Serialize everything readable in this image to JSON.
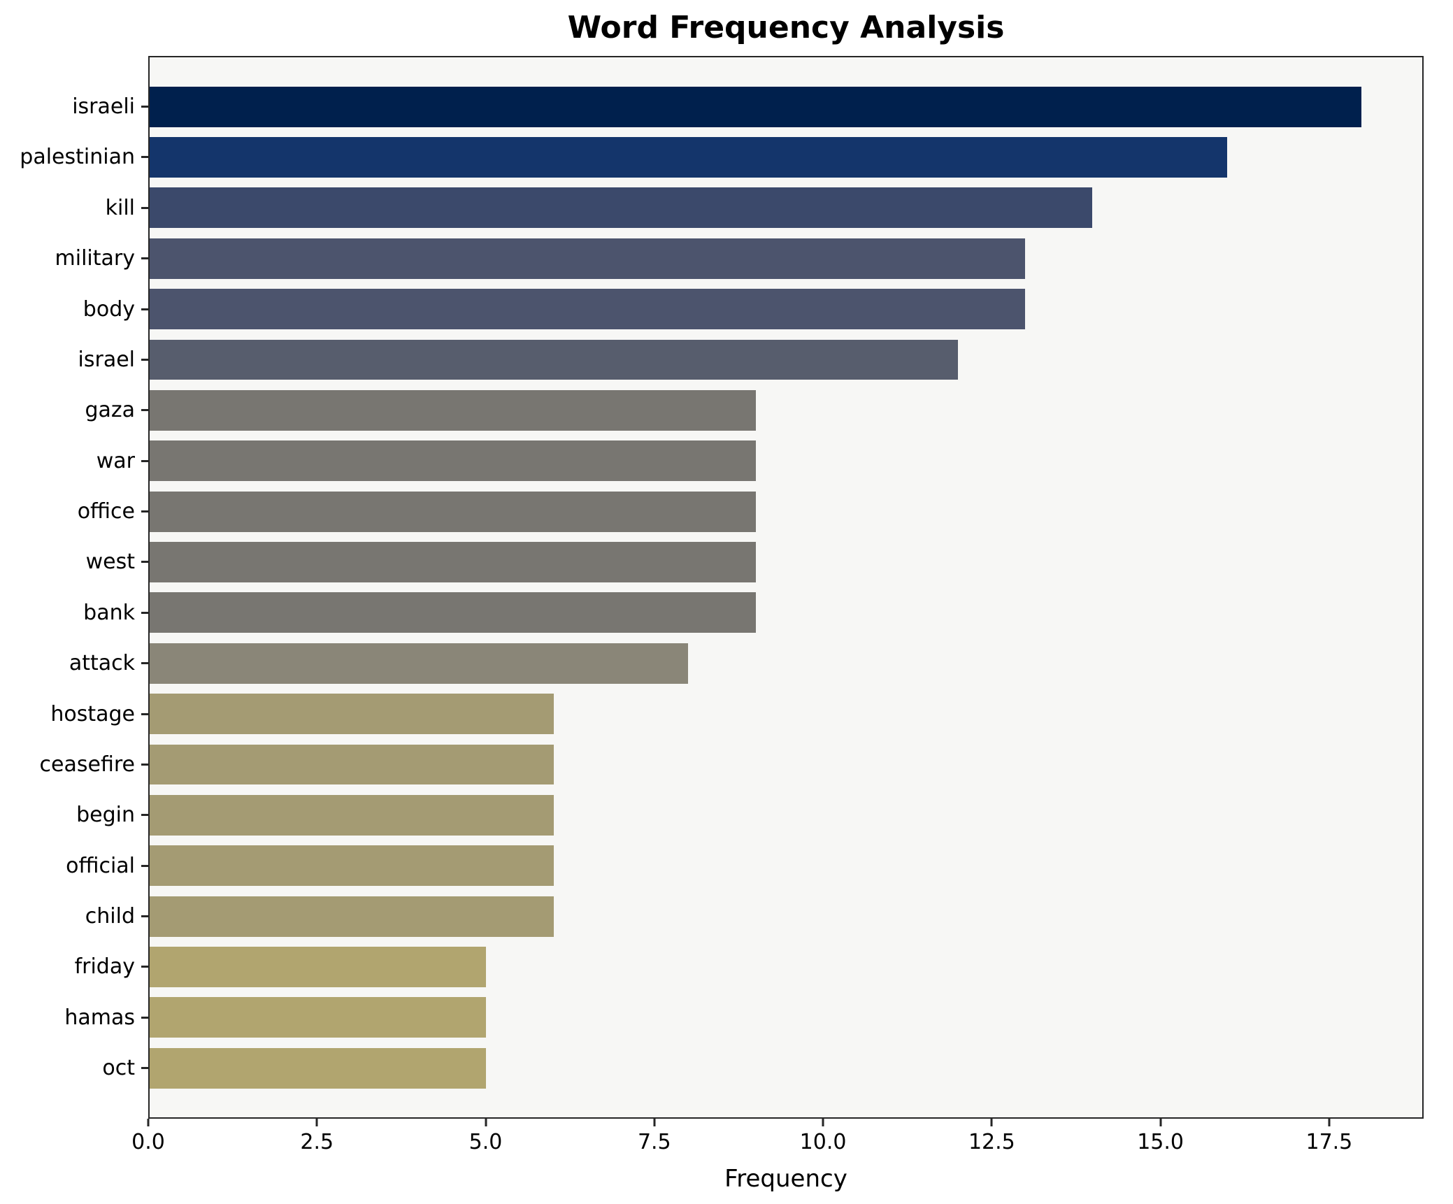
{
  "chart_data": {
    "type": "bar",
    "orientation": "horizontal",
    "title": "Word Frequency Analysis",
    "xlabel": "Frequency",
    "ylabel": "",
    "xlim": [
      0,
      18.9
    ],
    "xticks": [
      "0.0",
      "2.5",
      "5.0",
      "7.5",
      "10.0",
      "12.5",
      "15.0",
      "17.5"
    ],
    "xtick_values": [
      0,
      2.5,
      5,
      7.5,
      10,
      12.5,
      15,
      17.5
    ],
    "grid": false,
    "legend_position": "none",
    "plot_background": "#f7f7f5",
    "axis_color": "#262626",
    "categories": [
      "israeli",
      "palestinian",
      "kill",
      "military",
      "body",
      "israel",
      "gaza",
      "war",
      "office",
      "west",
      "bank",
      "attack",
      "hostage",
      "ceasefire",
      "begin",
      "official",
      "child",
      "friday",
      "hamas",
      "oct"
    ],
    "values": [
      18,
      16,
      14,
      13,
      13,
      12,
      9,
      9,
      9,
      9,
      9,
      8,
      6,
      6,
      6,
      6,
      6,
      5,
      5,
      5
    ],
    "bar_colors": [
      "#00204d",
      "#14356b",
      "#3b496b",
      "#4c546d",
      "#4c546d",
      "#575d6d",
      "#787671",
      "#787671",
      "#787671",
      "#787671",
      "#787671",
      "#8a8678",
      "#a49b73",
      "#a49b73",
      "#a49b73",
      "#a49b73",
      "#a49b73",
      "#b1a56f",
      "#b1a56f",
      "#b1a56f"
    ]
  }
}
